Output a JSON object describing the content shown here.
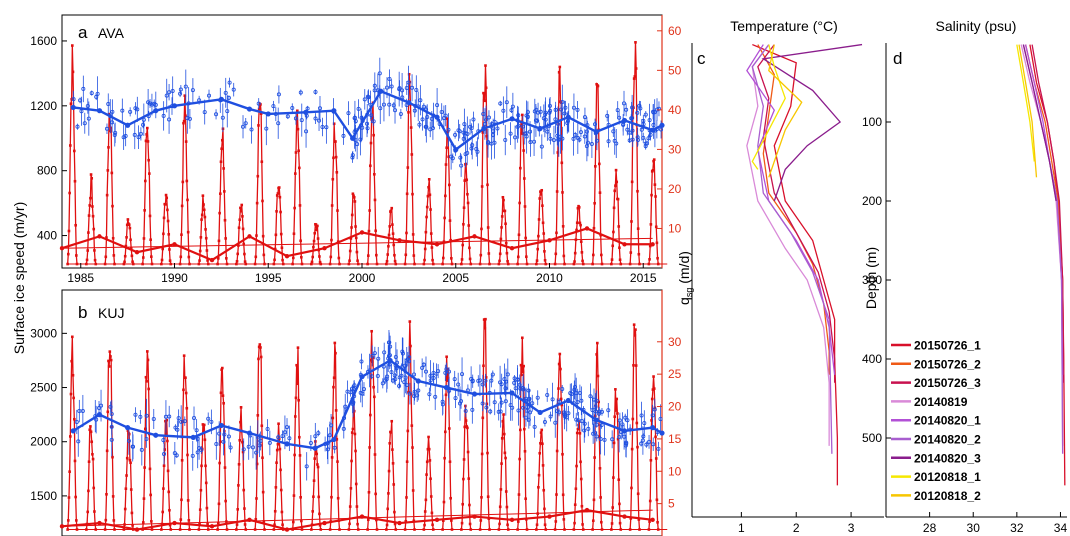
{
  "colors": {
    "speed": "#1f4fe0",
    "qsg": "#e01010",
    "axis_right": "#e0331b"
  },
  "chart_data": [
    {
      "type": "line",
      "panel": "a",
      "name": "AVA",
      "xlim": [
        1984,
        2016
      ],
      "x_ticks": [
        1985,
        1990,
        1995,
        2000,
        2005,
        2010,
        2015
      ],
      "ylabel": "Surface ice speed (m/yr)",
      "ylim": [
        200,
        1760
      ],
      "y_ticks": [
        400,
        800,
        1200,
        1600
      ],
      "y2label": "q_sg (m/d)",
      "y2lim": [
        0,
        64
      ],
      "y2_ticks": [
        10,
        20,
        30,
        40,
        50,
        60
      ],
      "speed_trend": {
        "x": [
          1984.6,
          1986,
          1987.5,
          1989,
          1990,
          1992.5,
          1994,
          1995,
          1997,
          1998.5,
          1999.5,
          2001,
          2002.5,
          2004,
          2005,
          2006.5,
          2008,
          2009.5,
          2011,
          2012.5,
          2014,
          2015.5,
          2016
        ],
        "y": [
          1190,
          1170,
          1080,
          1170,
          1200,
          1240,
          1180,
          1150,
          1160,
          1170,
          1000,
          1290,
          1220,
          1130,
          930,
          1060,
          1120,
          1060,
          1130,
          1040,
          1110,
          1050,
          1080
        ]
      },
      "qsg_trend": {
        "x": [
          1984,
          1986,
          1988,
          1990,
          1992,
          1994,
          1996,
          1998,
          2000,
          2002,
          2004,
          2006,
          2008,
          2010,
          2012,
          2014,
          2015.5
        ],
        "y": [
          5,
          8,
          4,
          6,
          2,
          8,
          3,
          5,
          9,
          7,
          6,
          8,
          5,
          7,
          10,
          6,
          6
        ]
      },
      "qsg_peaks": [
        58,
        24,
        46,
        14,
        41,
        22,
        45,
        20,
        39,
        17,
        49,
        23,
        42,
        13,
        40,
        21,
        47,
        16,
        52,
        24,
        38,
        30,
        56,
        19,
        46,
        22,
        55,
        18,
        50,
        28,
        64,
        33,
        47
      ]
    },
    {
      "type": "line",
      "panel": "b",
      "name": "KUJ",
      "xlim": [
        1984,
        2016
      ],
      "ylim": [
        1130,
        3400
      ],
      "y_ticks": [
        1500,
        2000,
        2500,
        3000
      ],
      "y2lim": [
        0,
        38
      ],
      "y2_ticks": [
        5,
        10,
        15,
        20,
        25,
        30
      ],
      "speed_trend": {
        "x": [
          1984.6,
          1986,
          1987.5,
          1989,
          1991,
          1992.5,
          1994,
          1996,
          1997.5,
          1998.5,
          2000,
          2001.5,
          2003,
          2004.5,
          2006,
          2008,
          2009.5,
          2011,
          2012.5,
          2014,
          2015.5,
          2016
        ],
        "y": [
          2100,
          2250,
          2130,
          2060,
          2040,
          2150,
          2080,
          1980,
          1940,
          2020,
          2600,
          2750,
          2560,
          2500,
          2440,
          2450,
          2270,
          2380,
          2200,
          2100,
          2130,
          2080
        ]
      },
      "qsg_trend": {
        "x": [
          1984,
          1986,
          1988,
          1990,
          1992,
          1994,
          1996,
          1998,
          2000,
          2002,
          2004,
          2006,
          2008,
          2010,
          2012,
          2014,
          2015.5
        ],
        "y": [
          1.5,
          2,
          1,
          2,
          1.5,
          2.5,
          1,
          2,
          3,
          2,
          2.5,
          3,
          2.5,
          3,
          4,
          3,
          2.5
        ]
      },
      "qsg_peaks": [
        31,
        20,
        34,
        18,
        30,
        19,
        32,
        20,
        28,
        21,
        34,
        18,
        31,
        17,
        30,
        22,
        35,
        19,
        34,
        16,
        30,
        23,
        36,
        20,
        33,
        18,
        34,
        22,
        30,
        25,
        36,
        31,
        37
      ]
    },
    {
      "type": "line",
      "panel": "c",
      "title": "Temperature (°C)",
      "xlim": [
        0.1,
        3.6
      ],
      "x_ticks": [
        1,
        2,
        3
      ],
      "ylim": [
        0,
        600
      ],
      "series": [
        {
          "name": "20150726_1",
          "x": [
            1.2,
            2.0,
            1.9,
            1.6,
            1.8,
            2.3,
            2.5,
            2.7,
            2.7,
            2.75,
            2.75
          ],
          "depth": [
            2,
            25,
            80,
            130,
            200,
            250,
            300,
            350,
            400,
            500,
            560
          ]
        },
        {
          "name": "20150726_2",
          "x": [
            1.3,
            1.6,
            1.5,
            1.4,
            1.5,
            2.0,
            2.3,
            2.5,
            2.6,
            2.6
          ],
          "depth": [
            2,
            40,
            90,
            140,
            190,
            240,
            280,
            330,
            390,
            420
          ]
        },
        {
          "name": "20150726_3",
          "x": [
            1.6,
            1.3,
            1.5,
            1.4,
            1.6,
            2.0,
            2.4,
            2.6,
            2.7,
            2.7
          ],
          "depth": [
            2,
            30,
            70,
            120,
            190,
            240,
            290,
            340,
            400,
            430
          ]
        },
        {
          "name": "20140819",
          "x": [
            1.5,
            1.2,
            1.3,
            1.1,
            1.3,
            1.8,
            2.2,
            2.5,
            2.6,
            2.6
          ],
          "depth": [
            2,
            30,
            80,
            130,
            200,
            260,
            300,
            360,
            430,
            510
          ]
        },
        {
          "name": "20140820_1",
          "x": [
            1.4,
            1.1,
            1.6,
            1.3,
            1.5,
            2.0,
            2.4,
            2.6,
            2.7
          ],
          "depth": [
            2,
            35,
            85,
            135,
            200,
            250,
            300,
            360,
            420
          ]
        },
        {
          "name": "20140820_2",
          "x": [
            1.5,
            1.2,
            1.4,
            1.3,
            1.4,
            1.9,
            2.3,
            2.6,
            2.65
          ],
          "depth": [
            2,
            30,
            80,
            130,
            190,
            240,
            290,
            350,
            520
          ]
        },
        {
          "name": "20140820_3",
          "x": [
            3.2,
            1.4,
            2.3,
            2.8,
            2.2,
            1.8,
            1.6
          ],
          "depth": [
            2,
            20,
            60,
            100,
            130,
            160,
            200
          ]
        },
        {
          "name": "20120818_1",
          "x": [
            1.5,
            1.6,
            1.8,
            1.5,
            1.2,
            1.3
          ],
          "depth": [
            2,
            30,
            70,
            110,
            150,
            160
          ]
        },
        {
          "name": "20120818_2",
          "x": [
            1.6,
            1.5,
            2.1,
            1.8,
            1.6,
            1.5
          ],
          "depth": [
            2,
            35,
            75,
            110,
            150,
            170
          ]
        }
      ]
    },
    {
      "type": "line",
      "panel": "d",
      "title": "Salinity (psu)",
      "ylabel": "Depth (m)",
      "xlim": [
        26,
        34.3
      ],
      "x_ticks": [
        28,
        30,
        32,
        34
      ],
      "ylim": [
        0,
        600
      ],
      "y_ticks": [
        100,
        200,
        300,
        400,
        500
      ],
      "series": [
        {
          "name": "20150726_1",
          "x": [
            32.6,
            32.9,
            33.4,
            33.7,
            33.9,
            34.1,
            34.15,
            34.2
          ],
          "depth": [
            2,
            50,
            100,
            150,
            200,
            300,
            400,
            560
          ]
        },
        {
          "name": "20150726_2",
          "x": [
            32.4,
            32.8,
            33.3,
            33.6,
            33.9,
            34.1,
            34.15
          ],
          "depth": [
            2,
            50,
            100,
            150,
            200,
            300,
            420
          ]
        },
        {
          "name": "20150726_3",
          "x": [
            32.7,
            33.0,
            33.4,
            33.7,
            33.95,
            34.1,
            34.15
          ],
          "depth": [
            2,
            50,
            100,
            150,
            200,
            300,
            430
          ]
        },
        {
          "name": "20140819",
          "x": [
            32.2,
            32.6,
            33.1,
            33.5,
            33.8,
            34.05,
            34.1
          ],
          "depth": [
            2,
            50,
            100,
            150,
            200,
            300,
            510
          ]
        },
        {
          "name": "20140820_1",
          "x": [
            32.4,
            32.8,
            33.2,
            33.5,
            33.85,
            34.05,
            34.1
          ],
          "depth": [
            2,
            50,
            100,
            150,
            200,
            300,
            420
          ]
        },
        {
          "name": "20140820_2",
          "x": [
            32.3,
            32.7,
            33.1,
            33.5,
            33.85,
            34.05,
            34.1
          ],
          "depth": [
            2,
            50,
            100,
            150,
            200,
            300,
            520
          ]
        },
        {
          "name": "20140820_3",
          "x": [
            32.3,
            32.7,
            33.1,
            33.5,
            33.8
          ],
          "depth": [
            2,
            50,
            100,
            150,
            200
          ]
        },
        {
          "name": "20120818_1",
          "x": [
            32.0,
            32.3,
            32.6,
            32.8
          ],
          "depth": [
            2,
            50,
            100,
            150
          ]
        },
        {
          "name": "20120818_2",
          "x": [
            32.1,
            32.4,
            32.7,
            32.9
          ],
          "depth": [
            2,
            50,
            100,
            170
          ]
        }
      ],
      "legend": {
        "placement": "bottom-left",
        "entries": [
          {
            "name": "20150726_1",
            "color": "#d8102a"
          },
          {
            "name": "20150726_2",
            "color": "#ef5a16"
          },
          {
            "name": "20150726_3",
            "color": "#c8124f"
          },
          {
            "name": "20140819",
            "color": "#d98ad8"
          },
          {
            "name": "20140820_1",
            "color": "#b250d6"
          },
          {
            "name": "20140820_2",
            "color": "#a85ecf"
          },
          {
            "name": "20140820_3",
            "color": "#8a1d8c"
          },
          {
            "name": "20120818_1",
            "color": "#f5e800"
          },
          {
            "name": "20120818_2",
            "color": "#f7c600"
          }
        ]
      }
    }
  ]
}
